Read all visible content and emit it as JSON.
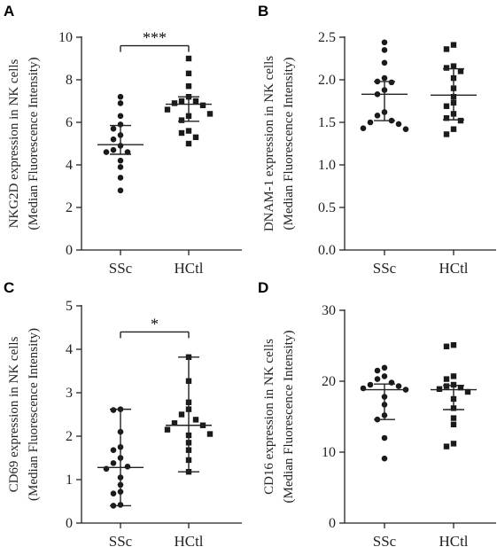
{
  "chart_data": [
    {
      "type": "scatter",
      "panel": "A",
      "categories": [
        "SSc",
        "HCtl"
      ],
      "ylabel": [
        "NKG2D expression in NK cells",
        "(Median Fluorescence Intensity)"
      ],
      "ylim": [
        0,
        10
      ],
      "yticks": [
        0,
        2,
        4,
        6,
        8,
        10
      ],
      "ytick_labels": [
        "0",
        "2",
        "4",
        "6",
        "8",
        "10"
      ],
      "series": [
        {
          "values": [
            7.2,
            6.9,
            6.3,
            5.9,
            5.7,
            5.4,
            5.2,
            4.9,
            4.7,
            4.6,
            4.6,
            4.2,
            3.9,
            3.4,
            2.8
          ],
          "marker": "circle",
          "median": 4.95,
          "iqr": [
            4.5,
            5.85
          ]
        },
        {
          "values": [
            9.0,
            8.3,
            7.7,
            7.2,
            7.0,
            7.0,
            6.9,
            6.8,
            6.6,
            6.4,
            6.3,
            6.1,
            5.6,
            5.5,
            5.3,
            5.0
          ],
          "marker": "square",
          "median": 6.85,
          "iqr": [
            6.05,
            7.2
          ]
        }
      ],
      "significance": {
        "label": "***",
        "between": [
          "SSc",
          "HCtl"
        ],
        "at": 9.6
      }
    },
    {
      "type": "scatter",
      "panel": "B",
      "categories": [
        "SSc",
        "HCtl"
      ],
      "ylabel": [
        "DNAM-1 expression in NK cells",
        "(Median Fluorescence Intensity)"
      ],
      "ylim": [
        0,
        2.5
      ],
      "yticks": [
        0,
        0.5,
        1.0,
        1.5,
        2.0,
        2.5
      ],
      "ytick_labels": [
        "0.0",
        "0.5",
        "1.0",
        "1.5",
        "2.0",
        "2.5"
      ],
      "series": [
        {
          "values": [
            2.44,
            2.35,
            2.2,
            2.02,
            1.98,
            1.97,
            1.88,
            1.83,
            1.62,
            1.58,
            1.52,
            1.5,
            1.48,
            1.42,
            1.43
          ],
          "marker": "circle",
          "median": 1.83,
          "iqr": [
            1.52,
            1.98
          ]
        },
        {
          "values": [
            2.41,
            2.36,
            2.16,
            2.14,
            2.1,
            2.02,
            1.9,
            1.8,
            1.73,
            1.69,
            1.6,
            1.55,
            1.52,
            1.42,
            1.36
          ],
          "marker": "square",
          "median": 1.82,
          "iqr": [
            1.53,
            2.13
          ]
        }
      ]
    },
    {
      "type": "scatter",
      "panel": "C",
      "categories": [
        "SSc",
        "HCtl"
      ],
      "ylabel": [
        "CD69 expression in NK cells",
        "(Median Fluorescence Intensity)"
      ],
      "ylim": [
        0,
        5
      ],
      "yticks": [
        0,
        1,
        2,
        3,
        4,
        5
      ],
      "ytick_labels": [
        "0",
        "1",
        "2",
        "3",
        "4",
        "5"
      ],
      "series": [
        {
          "values": [
            2.62,
            2.6,
            2.1,
            1.75,
            1.68,
            1.5,
            1.38,
            1.3,
            1.25,
            1.05,
            0.88,
            0.72,
            0.68,
            0.42,
            0.4
          ],
          "marker": "circle",
          "median": 1.28,
          "iqr": [
            0.4,
            2.62
          ]
        },
        {
          "values": [
            3.82,
            3.27,
            2.78,
            2.62,
            2.5,
            2.38,
            2.3,
            2.25,
            2.15,
            2.05,
            2.02,
            1.85,
            1.68,
            1.45,
            1.18
          ],
          "marker": "square",
          "median": 2.25,
          "iqr": [
            1.18,
            3.82
          ]
        }
      ],
      "significance": {
        "label": "*",
        "between": [
          "SSc",
          "HCtl"
        ],
        "at": 4.4
      }
    },
    {
      "type": "scatter",
      "panel": "D",
      "categories": [
        "SSc",
        "HCtl"
      ],
      "ylabel": [
        "CD16 expression in NK cells",
        "(Median Fluorescence Intensity)"
      ],
      "ylim": [
        0,
        30
      ],
      "yticks": [
        0,
        10,
        20,
        30
      ],
      "ytick_labels": [
        "0",
        "10",
        "20",
        "30"
      ],
      "series": [
        {
          "values": [
            21.9,
            21.5,
            20.7,
            20.3,
            19.8,
            19.5,
            19.3,
            19.0,
            18.8,
            17.8,
            16.7,
            15.2,
            14.6,
            12.0,
            9.1
          ],
          "marker": "circle",
          "median": 18.8,
          "iqr": [
            14.6,
            19.6
          ]
        },
        {
          "values": [
            25.1,
            24.9,
            20.7,
            20.3,
            19.5,
            19.3,
            19.1,
            18.9,
            18.5,
            17.5,
            16.2,
            14.8,
            13.9,
            11.2,
            10.8
          ],
          "marker": "square",
          "median": 18.8,
          "iqr": [
            16.0,
            19.4
          ]
        }
      ]
    }
  ]
}
